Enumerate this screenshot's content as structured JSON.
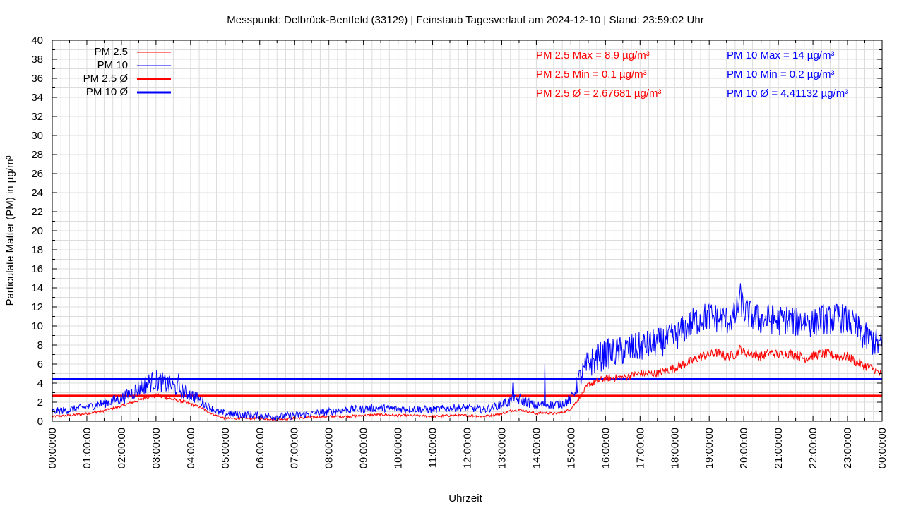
{
  "chart_data": {
    "type": "line",
    "title": "Messpunkt: Delbrück-Bentfeld (33129) | Feinstaub Tagesverlauf am 2024-12-10 | Stand: 23:59:02 Uhr",
    "xlabel": "Uhrzeit",
    "ylabel": "Particulate Matter (PM) in µg/m³",
    "ylim": [
      0,
      40
    ],
    "xlim_hours": [
      0,
      24
    ],
    "grid": true,
    "legend_position": "top-left",
    "x_ticks": [
      "00:00:00",
      "01:00:00",
      "02:00:00",
      "03:00:00",
      "04:00:00",
      "05:00:00",
      "06:00:00",
      "07:00:00",
      "08:00:00",
      "09:00:00",
      "10:00:00",
      "11:00:00",
      "12:00:00",
      "13:00:00",
      "14:00:00",
      "15:00:00",
      "16:00:00",
      "17:00:00",
      "18:00:00",
      "19:00:00",
      "20:00:00",
      "21:00:00",
      "22:00:00",
      "23:00:00",
      "00:00:00"
    ],
    "y_ticks": [
      0,
      2,
      4,
      6,
      8,
      10,
      12,
      14,
      16,
      18,
      20,
      22,
      24,
      26,
      28,
      30,
      32,
      34,
      36,
      38,
      40
    ],
    "series": [
      {
        "name": "PM 2.5",
        "color": "#ff0000",
        "x": [
          0,
          0.5,
          1,
          1.5,
          2,
          2.5,
          2.75,
          3,
          3.25,
          3.5,
          3.75,
          4,
          4.25,
          4.5,
          4.75,
          5,
          5.5,
          6,
          6.5,
          7,
          7.5,
          8,
          8.5,
          9,
          9.5,
          10,
          10.5,
          11,
          11.5,
          12,
          12.5,
          13,
          13.25,
          13.5,
          13.75,
          14,
          14.25,
          14.5,
          14.75,
          15,
          15.25,
          15.5,
          15.75,
          16,
          16.5,
          17,
          17.5,
          18,
          18.25,
          18.5,
          18.75,
          19,
          19.25,
          19.5,
          19.75,
          19.9,
          20,
          20.25,
          20.5,
          20.75,
          21,
          21.25,
          21.5,
          21.75,
          22,
          22.25,
          22.5,
          22.75,
          23,
          23.25,
          23.5,
          23.75,
          24
        ],
        "values": [
          0.5,
          0.6,
          0.8,
          1.1,
          1.6,
          2.2,
          2.6,
          2.7,
          2.5,
          2.3,
          2.1,
          1.8,
          1.5,
          1.0,
          0.6,
          0.3,
          0.3,
          0.3,
          0.2,
          0.3,
          0.4,
          0.5,
          0.5,
          0.6,
          0.7,
          0.6,
          0.6,
          0.5,
          0.6,
          0.6,
          0.5,
          0.8,
          1.1,
          1.2,
          1.0,
          0.8,
          0.9,
          0.8,
          0.9,
          1.3,
          2.5,
          3.8,
          4.2,
          4.5,
          4.6,
          5.0,
          5.0,
          5.6,
          6.0,
          6.3,
          6.8,
          7.0,
          7.2,
          6.8,
          7.0,
          7.6,
          7.2,
          7.1,
          6.8,
          7.2,
          7.0,
          7.1,
          7.0,
          6.6,
          6.9,
          7.1,
          7.0,
          6.8,
          6.8,
          6.2,
          5.8,
          5.5,
          4.8
        ]
      },
      {
        "name": "PM 10",
        "color": "#0000ff",
        "x": [
          0,
          0.5,
          1,
          1.5,
          2,
          2.5,
          2.75,
          3,
          3.25,
          3.5,
          3.75,
          4,
          4.25,
          4.5,
          4.75,
          5,
          5.5,
          6,
          6.5,
          7,
          7.5,
          8,
          8.5,
          9,
          9.5,
          10,
          10.5,
          11,
          11.5,
          12,
          12.5,
          13,
          13.25,
          13.5,
          13.75,
          14,
          14.25,
          14.5,
          14.75,
          15,
          15.25,
          15.5,
          15.75,
          16,
          16.5,
          17,
          17.5,
          18,
          18.25,
          18.5,
          18.75,
          19,
          19.25,
          19.5,
          19.75,
          19.9,
          20,
          20.25,
          20.5,
          20.75,
          21,
          21.25,
          21.5,
          21.75,
          22,
          22.25,
          22.5,
          22.75,
          23,
          23.25,
          23.5,
          23.75,
          24
        ],
        "values": [
          1.0,
          1.2,
          1.5,
          1.9,
          2.4,
          3.4,
          4.0,
          4.3,
          4.0,
          3.6,
          3.2,
          2.8,
          2.3,
          1.6,
          1.0,
          0.8,
          0.7,
          0.6,
          0.5,
          0.6,
          0.8,
          1.0,
          1.2,
          1.3,
          1.4,
          1.3,
          1.3,
          1.2,
          1.4,
          1.4,
          1.2,
          1.8,
          2.1,
          2.3,
          2.0,
          1.6,
          1.8,
          1.7,
          1.9,
          2.3,
          4.5,
          6.0,
          6.6,
          7.0,
          7.4,
          7.8,
          8.2,
          8.8,
          9.6,
          10.3,
          10.8,
          11.0,
          10.8,
          10.6,
          11.0,
          13.0,
          11.6,
          11.0,
          10.6,
          10.8,
          10.5,
          10.7,
          10.4,
          10.6,
          10.3,
          10.8,
          10.6,
          10.9,
          10.6,
          9.8,
          8.8,
          8.4,
          7.8
        ]
      }
    ],
    "spikes": [
      {
        "series": "PM 10",
        "x": 14.25,
        "value": 6.0
      },
      {
        "series": "PM 10",
        "x": 13.33,
        "value": 4.0
      },
      {
        "series": "PM 10",
        "x": 3.65,
        "value": 5.0
      }
    ],
    "averages": [
      {
        "name": "PM 2.5 Ø",
        "value": 2.67681,
        "color": "#ff0000"
      },
      {
        "name": "PM 10 Ø",
        "value": 4.41132,
        "color": "#0000ff"
      }
    ],
    "annotations": {
      "pm25": [
        "PM 2.5 Max = 8.9 µg/m³",
        "PM 2.5 Min = 0.1 µg/m³",
        "PM 2.5 Ø = 2.67681 µg/m³"
      ],
      "pm10": [
        "PM 10 Max = 14 µg/m³",
        "PM 10 Min = 0.2 µg/m³",
        "PM 10 Ø = 4.41132 µg/m³"
      ]
    },
    "legend": [
      {
        "label": "PM 2.5",
        "color": "#ff0000",
        "style": "thin"
      },
      {
        "label": "PM 10",
        "color": "#0000ff",
        "style": "thin"
      },
      {
        "label": "PM 2.5 Ø",
        "color": "#ff0000",
        "style": "thick"
      },
      {
        "label": "PM 10 Ø",
        "color": "#0000ff",
        "style": "thick"
      }
    ]
  }
}
